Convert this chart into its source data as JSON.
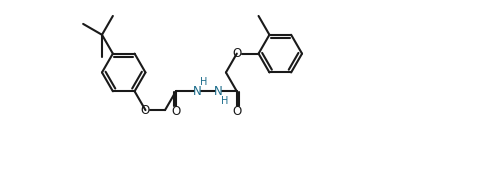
{
  "bg": "#ffffff",
  "lc": "#1a1a1a",
  "nc": "#1a6b8a",
  "lw": 1.5,
  "fs": 8.5,
  "fig_w": 4.91,
  "fig_h": 1.71,
  "dpi": 100,
  "xl": [
    -0.5,
    10.5
  ],
  "yl": [
    -0.2,
    3.7
  ]
}
